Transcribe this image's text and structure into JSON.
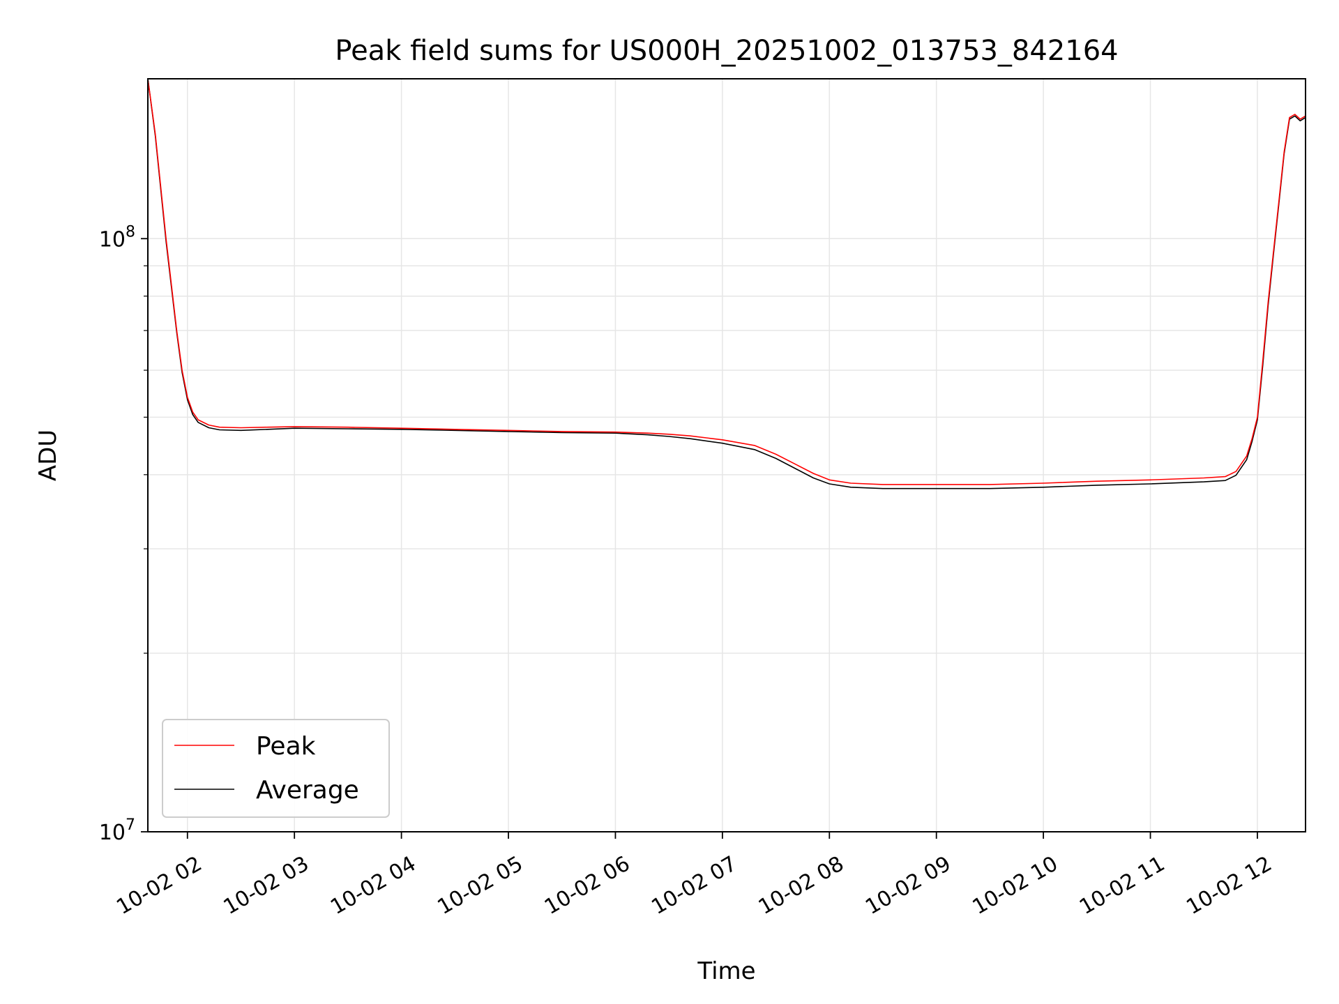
{
  "chart_data": {
    "type": "line",
    "title": "Peak field sums for US000H_20251002_013753_842164",
    "xlabel": "Time",
    "ylabel": "ADU",
    "yscale": "log",
    "ylim": [
      10000000,
      186000000
    ],
    "y_tick_labels": [
      {
        "value": 10000000,
        "base": "10",
        "exp": "7"
      },
      {
        "value": 100000000,
        "base": "10",
        "exp": "8"
      }
    ],
    "xlim": [
      1.63,
      12.45
    ],
    "x_ticks": [
      {
        "value": 2,
        "label": "10-02 02"
      },
      {
        "value": 3,
        "label": "10-02 03"
      },
      {
        "value": 4,
        "label": "10-02 04"
      },
      {
        "value": 5,
        "label": "10-02 05"
      },
      {
        "value": 6,
        "label": "10-02 06"
      },
      {
        "value": 7,
        "label": "10-02 07"
      },
      {
        "value": 8,
        "label": "10-02 08"
      },
      {
        "value": 9,
        "label": "10-02 09"
      },
      {
        "value": 10,
        "label": "10-02 10"
      },
      {
        "value": 11,
        "label": "10-02 11"
      },
      {
        "value": 12,
        "label": "10-02 12"
      }
    ],
    "x_unit": "hours since 2025-10-02 00:00",
    "grid": true,
    "legend": "lower-left",
    "series": [
      {
        "name": "Peak",
        "color": "#ff0000",
        "x": [
          1.63,
          1.7,
          1.8,
          1.9,
          1.95,
          2.0,
          2.05,
          2.1,
          2.2,
          2.3,
          2.5,
          2.75,
          3.0,
          3.5,
          4.0,
          4.5,
          5.0,
          5.5,
          6.0,
          6.3,
          6.5,
          6.7,
          7.0,
          7.3,
          7.5,
          7.7,
          7.85,
          8.0,
          8.2,
          8.5,
          9.0,
          9.5,
          10.0,
          10.5,
          11.0,
          11.5,
          11.7,
          11.8,
          11.9,
          11.95,
          12.0,
          12.05,
          12.1,
          12.15,
          12.2,
          12.25,
          12.3,
          12.35,
          12.4,
          12.45
        ],
        "y": [
          186000000,
          150000000,
          100000000,
          70000000,
          60000000,
          54000000,
          51000000,
          49500000,
          48500000,
          48100000,
          48000000,
          48100000,
          48200000,
          48100000,
          47900000,
          47700000,
          47500000,
          47300000,
          47200000,
          47000000,
          46800000,
          46500000,
          45800000,
          44800000,
          43300000,
          41500000,
          40200000,
          39200000,
          38700000,
          38500000,
          38500000,
          38500000,
          38700000,
          39000000,
          39200000,
          39500000,
          39700000,
          40500000,
          43000000,
          46000000,
          50000000,
          62000000,
          78000000,
          95000000,
          115000000,
          140000000,
          160000000,
          162000000,
          159000000,
          161000000
        ]
      },
      {
        "name": "Average",
        "color": "#000000",
        "x": [
          1.63,
          1.7,
          1.8,
          1.9,
          1.95,
          2.0,
          2.05,
          2.1,
          2.2,
          2.3,
          2.5,
          2.75,
          3.0,
          3.5,
          4.0,
          4.5,
          5.0,
          5.5,
          6.0,
          6.3,
          6.5,
          6.7,
          7.0,
          7.3,
          7.5,
          7.7,
          7.85,
          8.0,
          8.2,
          8.5,
          9.0,
          9.5,
          10.0,
          10.5,
          11.0,
          11.5,
          11.7,
          11.8,
          11.9,
          11.95,
          12.0,
          12.05,
          12.1,
          12.15,
          12.2,
          12.25,
          12.3,
          12.35,
          12.4,
          12.45
        ],
        "y": [
          186000000,
          149000000,
          99000000,
          69500000,
          59500000,
          53500000,
          50500000,
          49000000,
          48000000,
          47600000,
          47500000,
          47700000,
          47900000,
          47800000,
          47700000,
          47500000,
          47300000,
          47100000,
          47000000,
          46700000,
          46400000,
          46000000,
          45200000,
          44100000,
          42600000,
          40800000,
          39500000,
          38600000,
          38100000,
          37900000,
          37900000,
          37900000,
          38100000,
          38400000,
          38600000,
          38900000,
          39100000,
          39900000,
          42400000,
          45500000,
          49500000,
          61000000,
          77000000,
          94000000,
          114000000,
          139000000,
          159000000,
          161000000,
          158000000,
          160000000
        ]
      }
    ]
  }
}
